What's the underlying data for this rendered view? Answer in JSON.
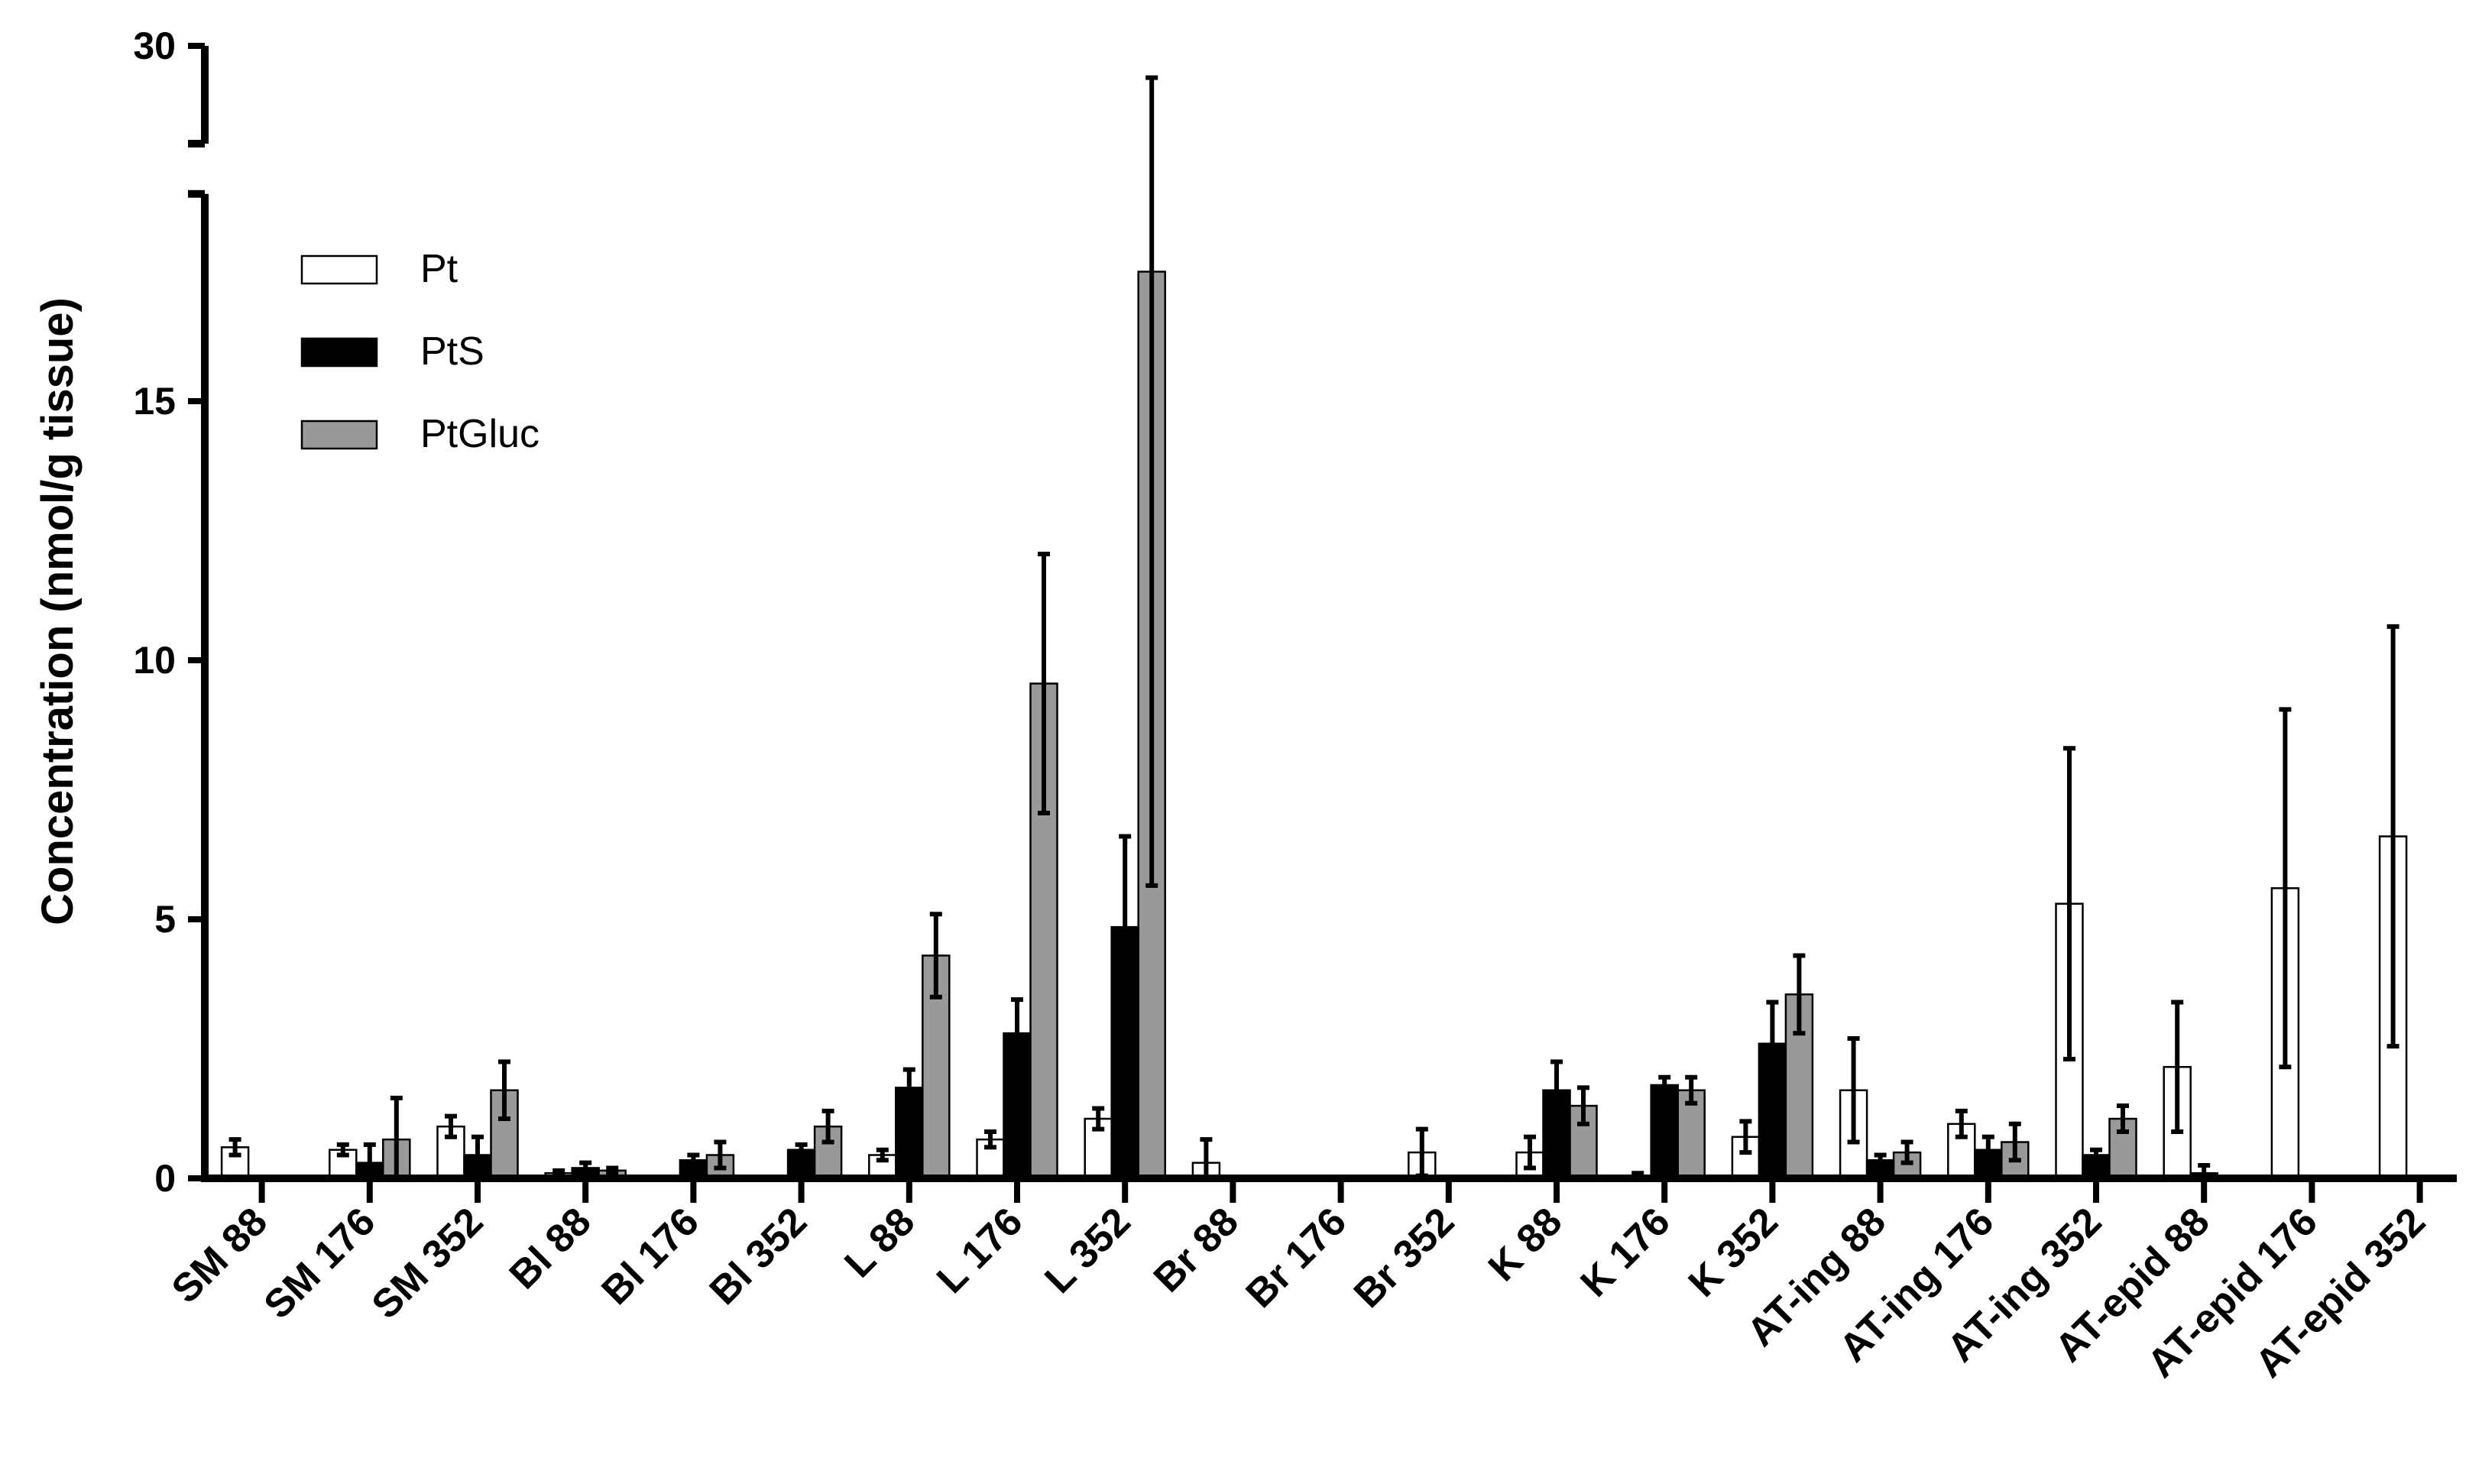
{
  "chart_data": {
    "type": "bar",
    "ylabel": "Concentration (nmol/g tissue)",
    "xlabel": "",
    "yaxis": {
      "break": true,
      "lower_range": [
        0,
        19
      ],
      "upper_range": [
        28,
        30
      ],
      "lower_ticks": [
        "0",
        "5",
        "10",
        "15"
      ],
      "upper_ticks": [
        "30"
      ]
    },
    "categories": [
      "SM 88",
      "SM 176",
      "SM 352",
      "Bl 88",
      "Bl 176",
      "Bl 352",
      "L 88",
      "L 176",
      "L 352",
      "Br 88",
      "Br 176",
      "Br 352",
      "K 88",
      "K 176",
      "K 352",
      "AT-ing 88",
      "AT-ing 176",
      "AT-ing 352",
      "AT-epid 88",
      "AT-epid 176",
      "AT-epid 352"
    ],
    "legend_position": "top-left",
    "series": [
      {
        "name": "Pt",
        "color": "#ffffff",
        "values": [
          0.6,
          0.55,
          1.0,
          0.1,
          null,
          null,
          0.45,
          0.75,
          1.15,
          0.3,
          null,
          0.5,
          0.5,
          0.05,
          0.8,
          1.7,
          1.05,
          5.3,
          2.15,
          5.6,
          6.6
        ],
        "errors": [
          0.15,
          0.1,
          0.2,
          0.05,
          null,
          null,
          0.1,
          0.15,
          0.2,
          0.45,
          null,
          0.45,
          0.3,
          0.05,
          0.3,
          1.0,
          0.25,
          3.0,
          1.25,
          3.45,
          4.05
        ]
      },
      {
        "name": "PtS",
        "color": "#000000",
        "values": [
          null,
          0.3,
          0.45,
          0.2,
          0.35,
          0.55,
          1.75,
          2.8,
          4.85,
          null,
          null,
          null,
          1.7,
          1.8,
          2.6,
          0.35,
          0.55,
          0.45,
          0.1,
          null,
          null
        ],
        "errors": [
          null,
          0.35,
          0.35,
          0.1,
          0.1,
          0.1,
          0.35,
          0.65,
          1.75,
          null,
          null,
          null,
          0.55,
          0.15,
          0.8,
          0.1,
          0.25,
          0.1,
          0.15,
          null,
          null
        ]
      },
      {
        "name": "PtGluc",
        "color": "#999999",
        "values": [
          null,
          0.75,
          1.7,
          0.15,
          0.45,
          1.0,
          4.3,
          9.55,
          17.5,
          null,
          null,
          null,
          1.4,
          1.7,
          3.55,
          0.5,
          0.7,
          1.15,
          null,
          null,
          null
        ],
        "errors": [
          null,
          0.8,
          0.55,
          0.05,
          0.25,
          0.3,
          0.8,
          2.5,
          11.85,
          null,
          null,
          null,
          0.35,
          0.25,
          0.75,
          0.2,
          0.35,
          0.25,
          null,
          null,
          null
        ]
      }
    ]
  }
}
